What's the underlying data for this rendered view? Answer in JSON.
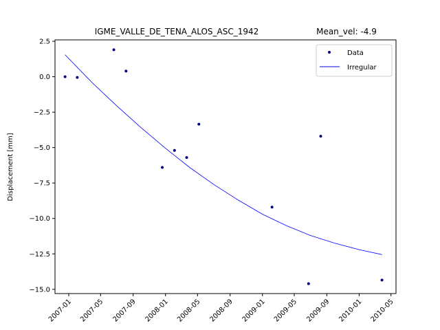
{
  "chart_data": {
    "type": "scatter",
    "title": "IGME_VALLE_DE_TENA_ALOS_ASC_1942",
    "subtitle": "Mean_vel: -4.9",
    "xlabel": "",
    "ylabel": "Displacement [mm]",
    "xlim": [
      "2006-11-10",
      "2010-05-20"
    ],
    "ylim": [
      -15.3,
      2.6
    ],
    "grid": false,
    "legend_position": "top-right",
    "x_ticks": [
      "2007-01",
      "2007-05",
      "2007-09",
      "2008-01",
      "2008-05",
      "2008-09",
      "2009-01",
      "2009-05",
      "2009-09",
      "2010-01",
      "2010-05"
    ],
    "y_ticks": [
      2.5,
      0.0,
      -2.5,
      -5.0,
      -7.5,
      -10.0,
      -12.5,
      -15.0
    ],
    "y_tick_labels": [
      "2.5",
      "0.0",
      "−2.5",
      "−5.0",
      "−7.5",
      "−10.0",
      "−12.5",
      "−15.0"
    ],
    "series": [
      {
        "name": "Data",
        "kind": "scatter",
        "color": "#00007f",
        "points": [
          {
            "x": "2006-12-18",
            "y": 0.0
          },
          {
            "x": "2007-02-02",
            "y": -0.05
          },
          {
            "x": "2007-06-20",
            "y": 1.9
          },
          {
            "x": "2007-08-05",
            "y": 0.4
          },
          {
            "x": "2007-12-20",
            "y": -6.4
          },
          {
            "x": "2008-02-04",
            "y": -5.2
          },
          {
            "x": "2008-03-21",
            "y": -5.7
          },
          {
            "x": "2008-05-06",
            "y": -3.35
          },
          {
            "x": "2009-02-06",
            "y": -9.2
          },
          {
            "x": "2009-06-24",
            "y": -14.6
          },
          {
            "x": "2009-08-09",
            "y": -4.2
          },
          {
            "x": "2010-03-28",
            "y": -14.35
          }
        ]
      },
      {
        "name": "Irregular",
        "kind": "line",
        "color": "#0000ff",
        "points": [
          {
            "x": "2006-12-18",
            "y": 1.55
          },
          {
            "x": "2007-04-01",
            "y": -0.45
          },
          {
            "x": "2007-07-01",
            "y": -2.05
          },
          {
            "x": "2007-10-01",
            "y": -3.6
          },
          {
            "x": "2008-01-01",
            "y": -5.05
          },
          {
            "x": "2008-04-01",
            "y": -6.4
          },
          {
            "x": "2008-07-01",
            "y": -7.6
          },
          {
            "x": "2008-10-01",
            "y": -8.7
          },
          {
            "x": "2009-01-01",
            "y": -9.7
          },
          {
            "x": "2009-04-01",
            "y": -10.5
          },
          {
            "x": "2009-07-01",
            "y": -11.2
          },
          {
            "x": "2009-10-01",
            "y": -11.75
          },
          {
            "x": "2010-01-01",
            "y": -12.2
          },
          {
            "x": "2010-03-28",
            "y": -12.55
          }
        ]
      }
    ]
  }
}
